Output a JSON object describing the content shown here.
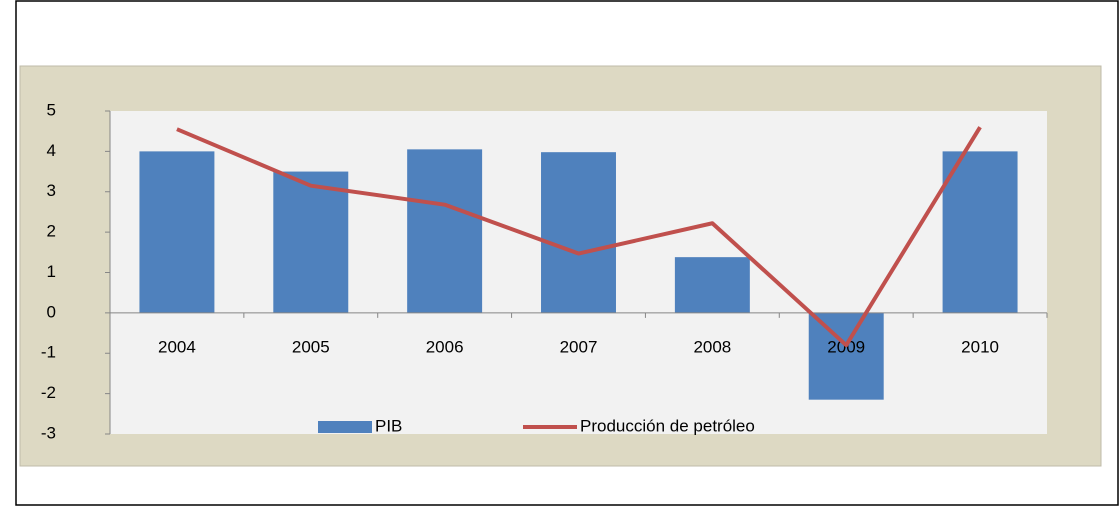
{
  "chart_data": {
    "type": "bar_line",
    "categories": [
      "2004",
      "2005",
      "2006",
      "2007",
      "2008",
      "2009",
      "2010"
    ],
    "series": [
      {
        "name": "PIB",
        "type": "bar",
        "color": "#4f81bd",
        "values": [
          4.0,
          3.5,
          4.05,
          3.98,
          1.38,
          -2.15,
          4.0
        ]
      },
      {
        "name": "Producción de petróleo",
        "type": "line",
        "color": "#c0504d",
        "values": [
          4.55,
          3.15,
          2.68,
          1.47,
          2.22,
          -0.8,
          4.6
        ]
      }
    ],
    "ylim": [
      -3,
      5
    ],
    "yticks": [
      -3,
      -2,
      -1,
      0,
      1,
      2,
      3,
      4,
      5
    ],
    "grid": false,
    "legend": "bottom"
  }
}
